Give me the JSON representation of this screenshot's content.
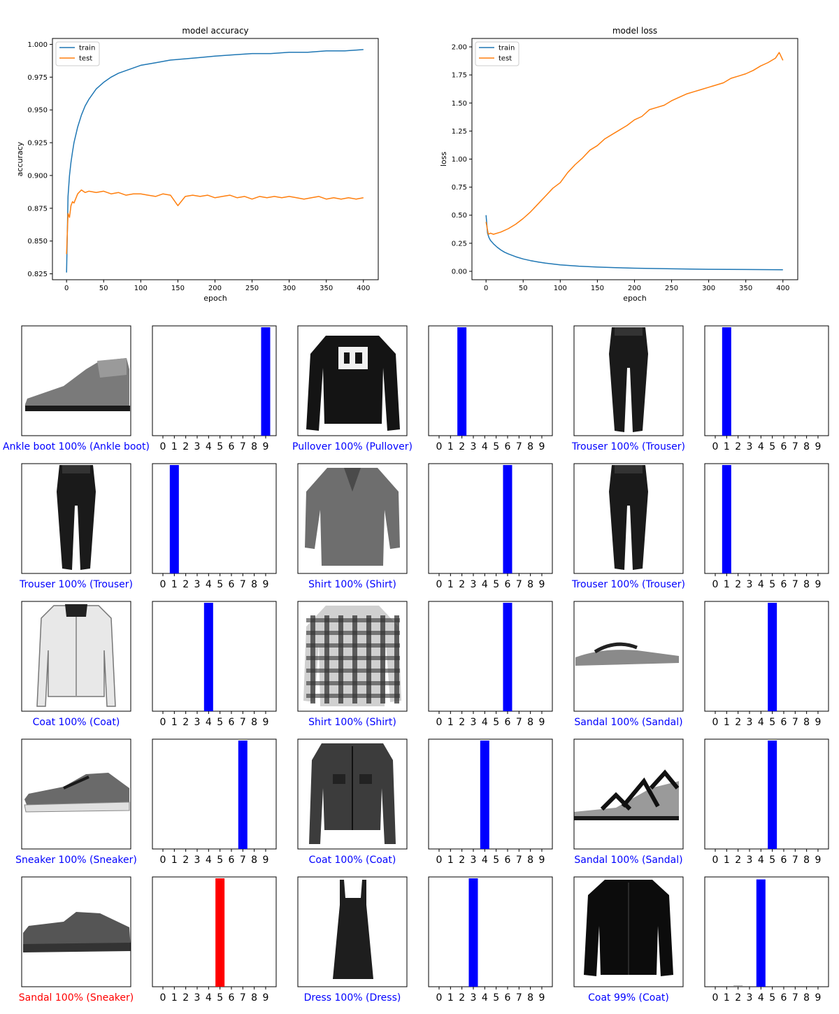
{
  "chart_data": [
    {
      "type": "line",
      "title": "model accuracy",
      "xlabel": "epoch",
      "ylabel": "accuracy",
      "xlim": [
        -19,
        420
      ],
      "ylim": [
        0.8205,
        1.0045
      ],
      "xticks": [
        0,
        50,
        100,
        150,
        200,
        250,
        300,
        350,
        400
      ],
      "yticks": [
        0.825,
        0.85,
        0.875,
        0.9,
        0.925,
        0.95,
        0.975,
        1.0
      ],
      "ytick_labels": [
        "0.825",
        "0.850",
        "0.875",
        "0.900",
        "0.925",
        "0.950",
        "0.975",
        "1.000"
      ],
      "legend": {
        "placement": "upper-left",
        "entries": [
          "train",
          "test"
        ]
      },
      "grid": false,
      "series": [
        {
          "name": "train",
          "color": "#1f77b4",
          "x": [
            0,
            2,
            4,
            6,
            8,
            10,
            15,
            20,
            25,
            30,
            40,
            50,
            60,
            70,
            80,
            90,
            100,
            120,
            140,
            160,
            180,
            200,
            225,
            250,
            275,
            300,
            325,
            350,
            375,
            400
          ],
          "y": [
            0.826,
            0.884,
            0.9,
            0.91,
            0.918,
            0.925,
            0.937,
            0.946,
            0.953,
            0.958,
            0.966,
            0.971,
            0.975,
            0.978,
            0.98,
            0.982,
            0.984,
            0.986,
            0.988,
            0.989,
            0.99,
            0.991,
            0.992,
            0.993,
            0.993,
            0.994,
            0.994,
            0.995,
            0.995,
            0.996
          ]
        },
        {
          "name": "test",
          "color": "#ff7f0e",
          "x": [
            0,
            2,
            4,
            6,
            8,
            10,
            15,
            20,
            25,
            30,
            40,
            50,
            60,
            70,
            80,
            90,
            100,
            110,
            120,
            130,
            140,
            150,
            160,
            170,
            180,
            190,
            200,
            210,
            220,
            230,
            240,
            250,
            260,
            270,
            280,
            290,
            300,
            310,
            320,
            330,
            340,
            350,
            360,
            370,
            380,
            390,
            400
          ],
          "y": [
            0.84,
            0.871,
            0.868,
            0.877,
            0.88,
            0.879,
            0.886,
            0.889,
            0.887,
            0.888,
            0.887,
            0.888,
            0.886,
            0.887,
            0.885,
            0.886,
            0.886,
            0.885,
            0.884,
            0.886,
            0.885,
            0.877,
            0.884,
            0.885,
            0.884,
            0.885,
            0.883,
            0.884,
            0.885,
            0.883,
            0.884,
            0.882,
            0.884,
            0.883,
            0.884,
            0.883,
            0.884,
            0.883,
            0.882,
            0.883,
            0.884,
            0.882,
            0.883,
            0.882,
            0.883,
            0.882,
            0.883
          ]
        }
      ]
    },
    {
      "type": "line",
      "title": "model loss",
      "xlabel": "epoch",
      "ylabel": "loss",
      "xlim": [
        -19,
        420
      ],
      "ylim": [
        -0.075,
        2.075
      ],
      "xticks": [
        0,
        50,
        100,
        150,
        200,
        250,
        300,
        350,
        400
      ],
      "yticks": [
        0,
        0.25,
        0.5,
        0.75,
        1.0,
        1.25,
        1.5,
        1.75,
        2.0
      ],
      "ytick_labels": [
        "0.00",
        "0.25",
        "0.50",
        "0.75",
        "1.00",
        "1.25",
        "1.50",
        "1.75",
        "2.00"
      ],
      "legend": {
        "placement": "upper-left",
        "entries": [
          "train",
          "test"
        ]
      },
      "grid": false,
      "series": [
        {
          "name": "train",
          "color": "#1f77b4",
          "x": [
            0,
            2,
            4,
            6,
            8,
            10,
            15,
            20,
            25,
            30,
            40,
            50,
            60,
            70,
            80,
            90,
            100,
            125,
            150,
            175,
            200,
            250,
            300,
            350,
            400
          ],
          "y": [
            0.5,
            0.34,
            0.3,
            0.275,
            0.26,
            0.245,
            0.215,
            0.19,
            0.17,
            0.155,
            0.13,
            0.11,
            0.095,
            0.083,
            0.073,
            0.065,
            0.058,
            0.046,
            0.038,
            0.032,
            0.028,
            0.022,
            0.018,
            0.016,
            0.014
          ]
        },
        {
          "name": "test",
          "color": "#ff7f0e",
          "x": [
            0,
            3,
            6,
            10,
            20,
            30,
            40,
            50,
            60,
            70,
            80,
            90,
            100,
            110,
            120,
            130,
            140,
            150,
            160,
            170,
            180,
            190,
            200,
            210,
            220,
            230,
            240,
            250,
            260,
            270,
            280,
            290,
            300,
            310,
            320,
            330,
            340,
            350,
            360,
            370,
            380,
            390,
            395,
            400
          ],
          "y": [
            0.44,
            0.33,
            0.34,
            0.33,
            0.35,
            0.38,
            0.42,
            0.47,
            0.53,
            0.6,
            0.67,
            0.74,
            0.79,
            0.88,
            0.95,
            1.01,
            1.08,
            1.12,
            1.18,
            1.22,
            1.26,
            1.3,
            1.35,
            1.38,
            1.44,
            1.46,
            1.48,
            1.52,
            1.55,
            1.58,
            1.6,
            1.62,
            1.64,
            1.66,
            1.68,
            1.72,
            1.74,
            1.76,
            1.79,
            1.83,
            1.86,
            1.9,
            1.95,
            1.88
          ]
        }
      ]
    },
    {
      "type": "image-grid",
      "class_axis_ticks": [
        "0",
        "1",
        "2",
        "3",
        "4",
        "5",
        "6",
        "7",
        "8",
        "9"
      ],
      "colors": {
        "correct": "#0000ff",
        "incorrect": "#ff0000",
        "other_bars": "#777777"
      },
      "rows": [
        [
          {
            "caption": "Ankle boot 100% (Ankle boot)",
            "correct": true,
            "predicted": 9,
            "icon": "ankle-boot",
            "probabilities": [
              0,
              0,
              0,
              0,
              0,
              0,
              0,
              0,
              0,
              1
            ]
          },
          {
            "caption": "Pullover 100% (Pullover)",
            "correct": true,
            "predicted": 2,
            "icon": "pullover",
            "probabilities": [
              0,
              0,
              1,
              0,
              0,
              0,
              0,
              0,
              0,
              0
            ]
          },
          {
            "caption": "Trouser 100% (Trouser)",
            "correct": true,
            "predicted": 1,
            "icon": "trouser",
            "probabilities": [
              0,
              1,
              0,
              0,
              0,
              0,
              0,
              0,
              0,
              0
            ]
          }
        ],
        [
          {
            "caption": "Trouser 100% (Trouser)",
            "correct": true,
            "predicted": 1,
            "icon": "trouser",
            "probabilities": [
              0,
              1,
              0,
              0,
              0,
              0,
              0,
              0,
              0,
              0
            ]
          },
          {
            "caption": "Shirt 100% (Shirt)",
            "correct": true,
            "predicted": 6,
            "icon": "shirt",
            "probabilities": [
              0,
              0,
              0,
              0,
              0,
              0,
              1,
              0,
              0,
              0
            ]
          },
          {
            "caption": "Trouser 100% (Trouser)",
            "correct": true,
            "predicted": 1,
            "icon": "trouser",
            "probabilities": [
              0,
              1,
              0,
              0,
              0,
              0,
              0,
              0,
              0,
              0
            ]
          }
        ],
        [
          {
            "caption": "Coat 100% (Coat)",
            "correct": true,
            "predicted": 4,
            "icon": "coat-light",
            "probabilities": [
              0,
              0,
              0,
              0,
              1,
              0,
              0,
              0,
              0,
              0
            ]
          },
          {
            "caption": "Shirt 100% (Shirt)",
            "correct": true,
            "predicted": 6,
            "icon": "plaid-shirt",
            "probabilities": [
              0,
              0,
              0,
              0,
              0,
              0,
              1,
              0,
              0,
              0
            ]
          },
          {
            "caption": "Sandal 100% (Sandal)",
            "correct": true,
            "predicted": 5,
            "icon": "flip-flop",
            "probabilities": [
              0,
              0,
              0,
              0,
              0,
              1,
              0,
              0,
              0,
              0
            ]
          }
        ],
        [
          {
            "caption": "Sneaker 100% (Sneaker)",
            "correct": true,
            "predicted": 7,
            "icon": "sneaker",
            "probabilities": [
              0,
              0,
              0,
              0,
              0,
              0,
              0,
              1,
              0,
              0
            ]
          },
          {
            "caption": "Coat 100% (Coat)",
            "correct": true,
            "predicted": 4,
            "icon": "jacket",
            "probabilities": [
              0,
              0,
              0,
              0,
              1,
              0,
              0,
              0,
              0,
              0
            ]
          },
          {
            "caption": "Sandal 100% (Sandal)",
            "correct": true,
            "predicted": 5,
            "icon": "sandal",
            "probabilities": [
              0,
              0,
              0,
              0,
              0,
              1,
              0,
              0,
              0,
              0
            ]
          }
        ],
        [
          {
            "caption": "Sandal 100% (Sneaker)",
            "correct": false,
            "predicted": 5,
            "icon": "sneaker-low",
            "probabilities": [
              0,
              0,
              0,
              0,
              0,
              1,
              0,
              0,
              0,
              0
            ]
          },
          {
            "caption": "Dress 100% (Dress)",
            "correct": true,
            "predicted": 3,
            "icon": "dress",
            "probabilities": [
              0,
              0,
              0,
              1,
              0,
              0,
              0,
              0,
              0,
              0
            ]
          },
          {
            "caption": "Coat 99% (Coat)",
            "correct": true,
            "predicted": 4,
            "icon": "dark-coat",
            "probabilities": [
              0,
              0,
              0.01,
              0,
              0.99,
              0,
              0,
              0,
              0,
              0
            ]
          }
        ]
      ]
    }
  ]
}
